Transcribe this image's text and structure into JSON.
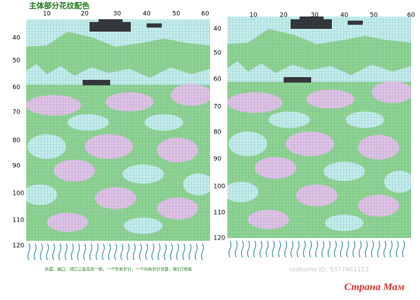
{
  "title": "主体部分花纹配色",
  "left_chart": {
    "column_numbers": [
      "10",
      "20",
      "30",
      "40",
      "50",
      "60"
    ],
    "row_numbers": [
      "40",
      "50",
      "60",
      "70",
      "80",
      "90",
      "100",
      "110",
      "120"
    ]
  },
  "right_chart": {
    "column_numbers": [
      "10",
      "20",
      "30",
      "40",
      "50",
      "60"
    ],
    "row_numbers": [
      "40",
      "50",
      "60",
      "70",
      "80",
      "90",
      "100",
      "110",
      "120"
    ]
  },
  "note": "衣摆、袖口、领口三处花纹一致，一个外有长针，一个内有长针交替，每5行结束",
  "watermark": "redhome ID: 5377461122",
  "logo": "Страна Мам"
}
